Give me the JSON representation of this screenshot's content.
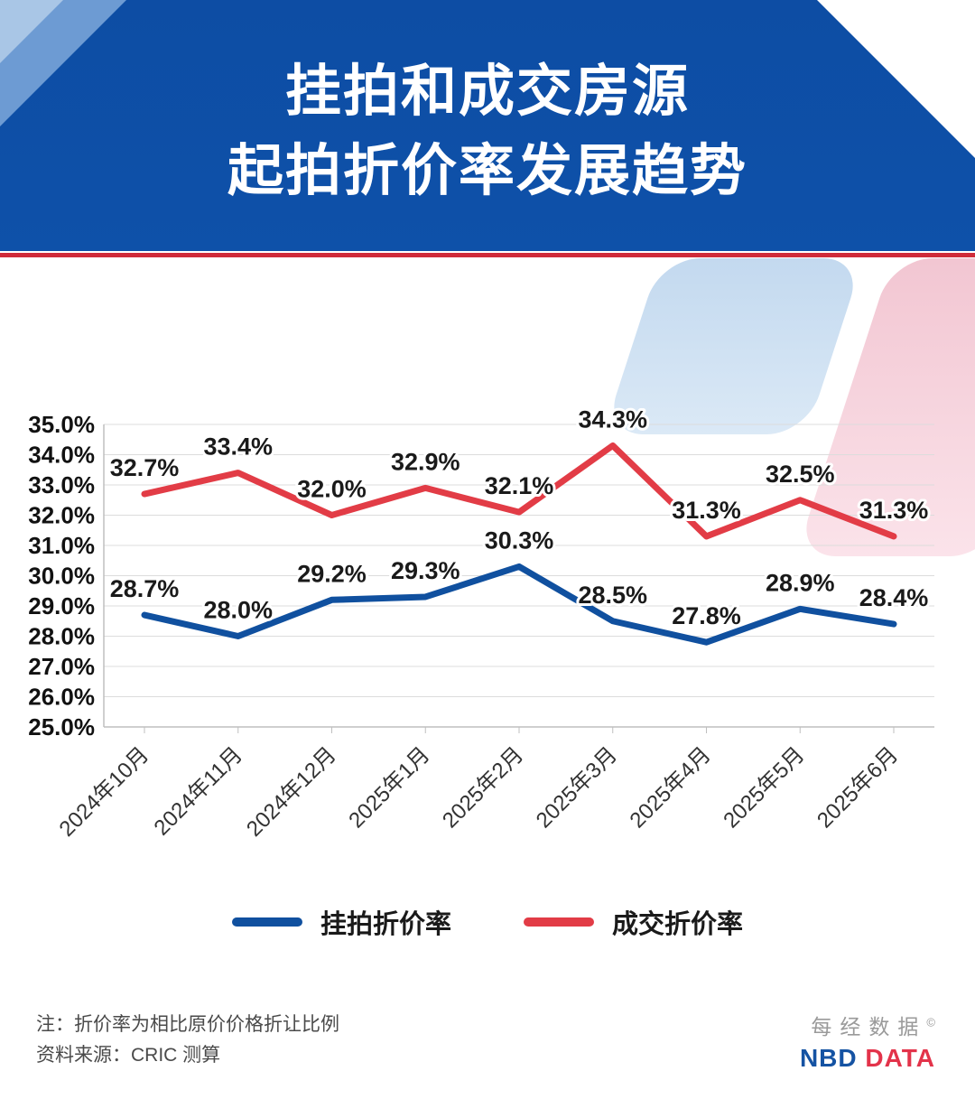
{
  "header": {
    "title_line1": "挂拍和成交房源",
    "title_line2": "起拍折价率发展趋势"
  },
  "chart_data": {
    "type": "line",
    "categories": [
      "2024年10月",
      "2024年11月",
      "2024年12月",
      "2025年1月",
      "2025年2月",
      "2025年3月",
      "2025年4月",
      "2025年5月",
      "2025年6月"
    ],
    "series": [
      {
        "name": "挂拍折价率",
        "color": "#10509f",
        "values": [
          28.7,
          28.0,
          29.2,
          29.3,
          30.3,
          28.5,
          27.8,
          28.9,
          28.4
        ]
      },
      {
        "name": "成交折价率",
        "color": "#e23c46",
        "values": [
          32.7,
          33.4,
          32.0,
          32.9,
          32.1,
          34.3,
          31.3,
          32.5,
          31.3
        ]
      }
    ],
    "ylim": [
      25.0,
      35.0
    ],
    "y_tick_step": 1.0,
    "y_tick_suffix": "%",
    "grid": true,
    "legend_position": "bottom"
  },
  "footer": {
    "note1": "注：折价率为相比原价价格折让比例",
    "note2": "资料来源：CRIC 测算",
    "logo_cn": "每经数据",
    "logo_copyright": "©",
    "logo_nbd": "NBD",
    "logo_data": "DATA"
  },
  "colors": {
    "header_bg": "#0d4da4",
    "accent_red": "#cf2b3a",
    "grid": "#dcdcdc"
  }
}
